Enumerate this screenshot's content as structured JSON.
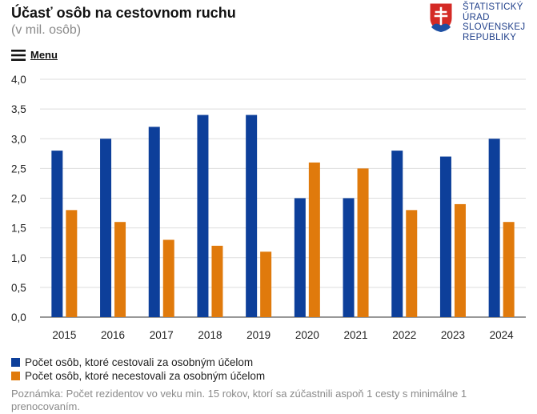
{
  "header": {
    "title": "Účasť osôb na cestovnom ruchu",
    "subtitle": "(v mil. osôb)"
  },
  "logo": {
    "lines": [
      "ŠTATISTICKÝ",
      "ÚRAD",
      "SLOVENSKEJ",
      "REPUBLIKY"
    ],
    "icon": "slovak-coat-of-arms-icon"
  },
  "menu": {
    "label": "Menu",
    "icon": "hamburger-icon"
  },
  "chart_data": {
    "type": "bar",
    "categories": [
      "2015",
      "2016",
      "2017",
      "2018",
      "2019",
      "2020",
      "2021",
      "2022",
      "2023",
      "2024"
    ],
    "series": [
      {
        "name": "Počet osôb, ktoré cestovali za osobným účelom",
        "color": "#0d3f9a",
        "values": [
          2.8,
          3.0,
          3.2,
          3.4,
          3.4,
          2.0,
          2.0,
          2.8,
          2.7,
          3.0
        ]
      },
      {
        "name": "Počet osôb, ktoré necestovali za osobným účelom",
        "color": "#e07a0c",
        "values": [
          1.8,
          1.6,
          1.3,
          1.2,
          1.1,
          2.6,
          2.5,
          1.8,
          1.9,
          1.6
        ]
      }
    ],
    "ylim": [
      0,
      4
    ],
    "yticks": [
      "0,0",
      "0,5",
      "1,0",
      "1,5",
      "2,0",
      "2,5",
      "3,0",
      "3,5",
      "4,0"
    ],
    "grid": true,
    "legend_position": "bottom-left"
  },
  "note": "Poznámka: Počet rezidentov vo veku min. 15 rokov, ktorí sa zúčastnili aspoň 1 cesty s minimálne 1 prenocovaním."
}
